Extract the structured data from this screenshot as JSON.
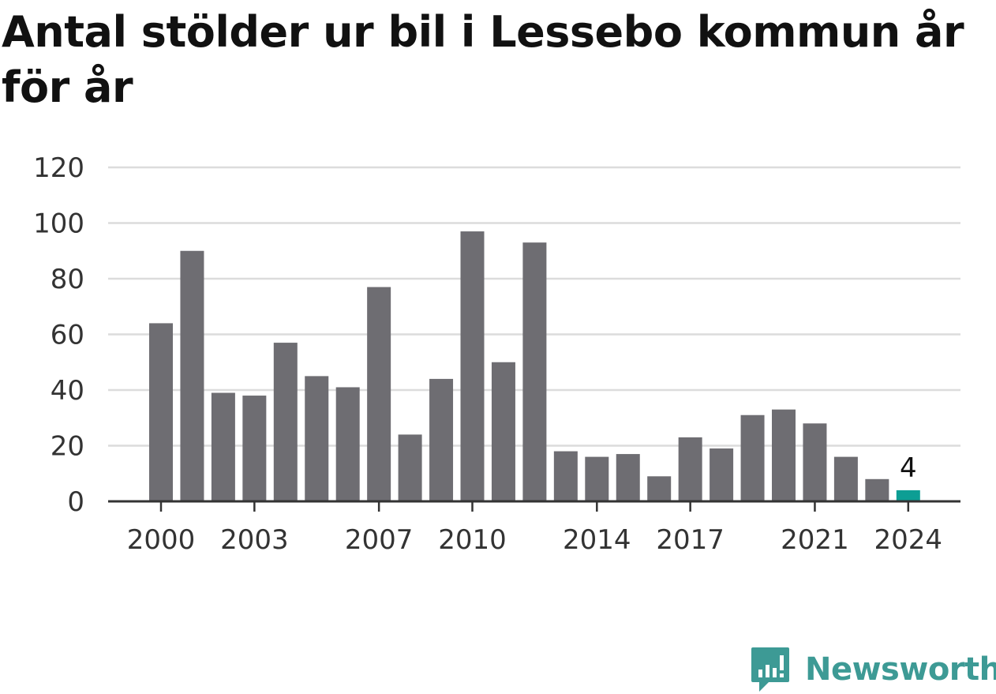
{
  "title": "Antal stölder ur bil i Lessebo kommun år för år",
  "logo": {
    "text": "Newsworthy",
    "icon": "newsworthy-chart-bubble-icon"
  },
  "colors": {
    "bar": "#6e6d72",
    "highlight": "#0d9e94",
    "grid": "#dcdcdc",
    "axis": "#333333",
    "brand": "#3d9a95"
  },
  "chart_data": {
    "type": "bar",
    "title": "Antal stölder ur bil i Lessebo kommun år för år",
    "xlabel": "",
    "ylabel": "",
    "categories": [
      "2000",
      "2001",
      "2002",
      "2003",
      "2004",
      "2005",
      "2006",
      "2007",
      "2008",
      "2009",
      "2010",
      "2011",
      "2012",
      "2013",
      "2014",
      "2015",
      "2016",
      "2017",
      "2018",
      "2019",
      "2020",
      "2021",
      "2022",
      "2023",
      "2024"
    ],
    "values": [
      64,
      90,
      39,
      38,
      57,
      45,
      41,
      77,
      24,
      44,
      97,
      50,
      93,
      18,
      16,
      17,
      9,
      23,
      19,
      31,
      33,
      28,
      16,
      8,
      4
    ],
    "x_tick_labels": [
      "2000",
      "2003",
      "2007",
      "2010",
      "2014",
      "2017",
      "2021",
      "2024"
    ],
    "y_ticks": [
      0,
      20,
      40,
      60,
      80,
      100,
      120
    ],
    "ylim": [
      0,
      120
    ],
    "grid": true,
    "highlight": {
      "category": "2024",
      "label": "4"
    }
  }
}
